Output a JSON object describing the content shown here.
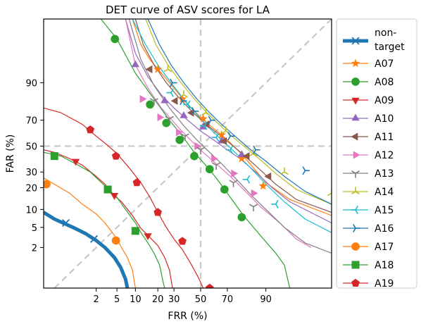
{
  "chart_data": {
    "type": "line",
    "title": "DET curve of ASV scores for LA",
    "xlabel": "FRR (%)",
    "ylabel": "FAR (%)",
    "xscale": "probit",
    "yscale": "probit",
    "xlim": [
      0.1,
      99.5
    ],
    "ylim": [
      0.2,
      99.5
    ],
    "x_ticks": [
      2,
      5,
      10,
      20,
      30,
      50,
      70,
      90
    ],
    "x_tick_labels": [
      "2",
      "5",
      "10",
      "20",
      "30",
      "50",
      "70",
      "90"
    ],
    "y_ticks": [
      2,
      5,
      10,
      20,
      30,
      50,
      70,
      90
    ],
    "y_tick_labels": [
      "2",
      "5",
      "10",
      "20",
      "30",
      "50",
      "70",
      "90"
    ],
    "grid": "dashed lines at 50% and the diagonal FAR = FRR",
    "legend_position": "outside right",
    "series": [
      {
        "name": "non-\ntarget",
        "color": "#1f77b4",
        "marker": "x",
        "thick": true,
        "points": [
          [
            0.1,
            9
          ],
          [
            0.2,
            7
          ],
          [
            0.6,
            5
          ],
          [
            1.2,
            3.8
          ],
          [
            2,
            2.8
          ],
          [
            3,
            2
          ],
          [
            4.5,
            1.2
          ],
          [
            5.8,
            0.7
          ],
          [
            7,
            0.35
          ],
          [
            7.5,
            0.2
          ]
        ],
        "marker_points": [
          [
            0.4,
            6
          ],
          [
            1.8,
            3
          ]
        ]
      },
      {
        "name": "A07",
        "color": "#ff7f0e",
        "marker": "star",
        "points": [
          [
            9,
            99.5
          ],
          [
            12,
            98
          ],
          [
            16,
            96
          ],
          [
            22,
            93
          ],
          [
            30,
            88
          ],
          [
            40,
            80
          ],
          [
            50,
            72
          ],
          [
            60,
            64
          ],
          [
            70,
            55
          ],
          [
            78,
            45
          ],
          [
            85,
            33
          ],
          [
            90,
            23
          ],
          [
            96,
            14
          ],
          [
            99.5,
            8
          ]
        ],
        "marker_points": [
          [
            20,
            94
          ],
          [
            36,
            83
          ],
          [
            52,
            71
          ],
          [
            66,
            59
          ],
          [
            79,
            40
          ],
          [
            89,
            21
          ]
        ]
      },
      {
        "name": "A08",
        "color": "#2ca02c",
        "marker": "circle",
        "points": [
          [
            2.5,
            99.5
          ],
          [
            5,
            98.5
          ],
          [
            10,
            93
          ],
          [
            18,
            83
          ],
          [
            27,
            70
          ],
          [
            36,
            58
          ],
          [
            45,
            45
          ],
          [
            53,
            36
          ],
          [
            62,
            26
          ],
          [
            71,
            16
          ],
          [
            80,
            8
          ],
          [
            88,
            3.5
          ],
          [
            93,
            1.5
          ],
          [
            95,
            0.8
          ],
          [
            96,
            0.2
          ]
        ],
        "marker_points": [
          [
            4.6,
            98.5
          ],
          [
            16,
            80
          ],
          [
            25,
            68
          ],
          [
            34,
            55
          ],
          [
            45,
            42
          ],
          [
            57,
            32
          ],
          [
            68,
            19
          ],
          [
            79,
            7.5
          ]
        ]
      },
      {
        "name": "A09",
        "color": "#d62728",
        "marker": "triangle_down",
        "points": [
          [
            0.1,
            47
          ],
          [
            0.2,
            45
          ],
          [
            0.5,
            40
          ],
          [
            1,
            35
          ],
          [
            2,
            27
          ],
          [
            3,
            22
          ],
          [
            4,
            17
          ],
          [
            6,
            13
          ],
          [
            9,
            8
          ],
          [
            12,
            4.8
          ],
          [
            16,
            3.2
          ],
          [
            20,
            2.2
          ],
          [
            24,
            1.2
          ],
          [
            27,
            0.6
          ],
          [
            29,
            0.2
          ]
        ],
        "marker_points": [
          [
            0.7,
            38
          ],
          [
            4.5,
            16
          ],
          [
            15,
            3.5
          ]
        ]
      },
      {
        "name": "A10",
        "color": "#9467bd",
        "marker": "triangle_up",
        "points": [
          [
            7,
            99.5
          ],
          [
            10,
            97
          ],
          [
            15,
            92
          ],
          [
            22,
            85
          ],
          [
            30,
            78
          ],
          [
            40,
            70
          ],
          [
            50,
            62
          ],
          [
            60,
            55
          ],
          [
            70,
            47
          ],
          [
            78,
            40
          ],
          [
            86,
            30
          ],
          [
            92,
            20
          ],
          [
            96,
            13
          ],
          [
            99.5,
            6
          ]
        ],
        "marker_points": [
          [
            10,
            95
          ],
          [
            24,
            82
          ],
          [
            37,
            73
          ],
          [
            52,
            65
          ],
          [
            66,
            54
          ],
          [
            79,
            43
          ]
        ]
      },
      {
        "name": "A11",
        "color": "#8c564b",
        "marker": "triangle_left",
        "points": [
          [
            10,
            99.5
          ],
          [
            13,
            98
          ],
          [
            18,
            95
          ],
          [
            25,
            90
          ],
          [
            33,
            84
          ],
          [
            43,
            76
          ],
          [
            53,
            68
          ],
          [
            62,
            61
          ],
          [
            71,
            53
          ],
          [
            80,
            43
          ],
          [
            87,
            33
          ],
          [
            93,
            22
          ],
          [
            97,
            14
          ],
          [
            99.5,
            9
          ]
        ],
        "marker_points": [
          [
            16,
            94
          ],
          [
            31,
            82
          ],
          [
            43,
            75
          ],
          [
            55,
            67
          ],
          [
            68,
            54
          ],
          [
            82,
            42
          ],
          [
            91,
            27
          ]
        ]
      },
      {
        "name": "A12",
        "color": "#e377c2",
        "marker": "triangle_right",
        "points": [
          [
            7,
            99.5
          ],
          [
            10,
            95
          ],
          [
            15,
            88
          ],
          [
            22,
            78
          ],
          [
            32,
            66
          ],
          [
            42,
            55
          ],
          [
            52,
            45
          ],
          [
            62,
            36
          ],
          [
            72,
            27
          ],
          [
            81,
            18
          ],
          [
            88,
            11
          ],
          [
            94,
            6
          ],
          [
            97,
            3
          ],
          [
            98.5,
            2
          ]
        ],
        "marker_points": [
          [
            12.5,
            83
          ],
          [
            21,
            72
          ],
          [
            33,
            61
          ],
          [
            47,
            50
          ],
          [
            60,
            40
          ],
          [
            74,
            29
          ],
          [
            85,
            17
          ]
        ]
      },
      {
        "name": "A13",
        "color": "#7f7f7f",
        "marker": "tri_down",
        "points": [
          [
            8,
            99.5
          ],
          [
            12,
            96
          ],
          [
            18,
            89
          ],
          [
            27,
            78
          ],
          [
            37,
            66
          ],
          [
            47,
            55
          ],
          [
            57,
            45
          ],
          [
            67,
            35
          ],
          [
            76,
            25
          ],
          [
            84,
            16
          ],
          [
            90,
            10
          ],
          [
            95,
            5
          ],
          [
            98,
            2.5
          ],
          [
            99.5,
            1.5
          ]
        ],
        "marker_points": [
          [
            18,
            82
          ],
          [
            27,
            71
          ],
          [
            38,
            58
          ],
          [
            50,
            47
          ],
          [
            62,
            35
          ],
          [
            74,
            23
          ],
          [
            85,
            11
          ]
        ]
      },
      {
        "name": "A14",
        "color": "#bcbd22",
        "marker": "tri_up",
        "points": [
          [
            14,
            99.5
          ],
          [
            19,
            98
          ],
          [
            26,
            95
          ],
          [
            35,
            90
          ],
          [
            45,
            83
          ],
          [
            55,
            75
          ],
          [
            64,
            67
          ],
          [
            73,
            58
          ],
          [
            81,
            49
          ],
          [
            88,
            39
          ],
          [
            93,
            29
          ],
          [
            97,
            19
          ],
          [
            99.5,
            12
          ]
        ],
        "marker_points": [
          [
            26,
            94
          ],
          [
            37,
            85
          ],
          [
            54,
            75
          ],
          [
            69,
            62
          ],
          [
            85,
            44
          ],
          [
            95,
            30
          ],
          [
            99.5,
            17
          ]
        ]
      },
      {
        "name": "A15",
        "color": "#17becf",
        "marker": "tri_left",
        "points": [
          [
            9,
            99.5
          ],
          [
            14,
            98
          ],
          [
            20,
            95
          ],
          [
            28,
            90
          ],
          [
            38,
            82
          ],
          [
            48,
            73
          ],
          [
            57,
            64
          ],
          [
            66,
            55
          ],
          [
            75,
            45
          ],
          [
            83,
            34
          ],
          [
            90,
            22
          ],
          [
            95,
            13
          ],
          [
            98,
            7
          ],
          [
            99.5,
            4
          ]
        ],
        "marker_points": [
          [
            28,
            86
          ],
          [
            40,
            80
          ],
          [
            53,
            66
          ],
          [
            62,
            57
          ],
          [
            72,
            47
          ],
          [
            82,
            25
          ],
          [
            93,
            12
          ]
        ]
      },
      {
        "name": "A16",
        "color": "#1f77b4",
        "marker": "tri_right",
        "points": [
          [
            15,
            99.5
          ],
          [
            21,
            98
          ],
          [
            28,
            95
          ],
          [
            37,
            90
          ],
          [
            47,
            83
          ],
          [
            57,
            75
          ],
          [
            66,
            67
          ],
          [
            75,
            58
          ],
          [
            83,
            48
          ],
          [
            90,
            38
          ],
          [
            95,
            27
          ],
          [
            98,
            18
          ],
          [
            99.5,
            12
          ]
        ],
        "marker_points": [
          [
            22,
            100
          ],
          [
            29,
            90
          ],
          [
            36,
            82
          ],
          [
            45,
            76
          ],
          [
            58,
            70
          ],
          [
            72,
            58
          ],
          [
            86,
            47
          ],
          [
            98,
            31
          ]
        ]
      },
      {
        "name": "A17",
        "color": "#ff7f0e",
        "marker": "circle",
        "points": [
          [
            0.1,
            26
          ],
          [
            0.2,
            22
          ],
          [
            0.5,
            17
          ],
          [
            1,
            12
          ],
          [
            2,
            8.5
          ],
          [
            3,
            6
          ],
          [
            4,
            4.2
          ],
          [
            5,
            3
          ],
          [
            6,
            2
          ],
          [
            7.5,
            1.2
          ],
          [
            9,
            0.6
          ],
          [
            10,
            0.2
          ]
        ],
        "marker_points": [
          [
            0.12,
            22
          ],
          [
            4.8,
            2.8
          ]
        ]
      },
      {
        "name": "A18",
        "color": "#2ca02c",
        "marker": "square",
        "points": [
          [
            0.1,
            45
          ],
          [
            0.3,
            42
          ],
          [
            0.7,
            36
          ],
          [
            1.5,
            30
          ],
          [
            3,
            21
          ],
          [
            5,
            15
          ],
          [
            7,
            10
          ],
          [
            10,
            6
          ],
          [
            12,
            4
          ],
          [
            15,
            2.5
          ],
          [
            18,
            1.5
          ],
          [
            21,
            0.8
          ],
          [
            23,
            0.3
          ],
          [
            24,
            0.2
          ]
        ],
        "marker_points": [
          [
            0.2,
            42
          ],
          [
            3.4,
            19
          ],
          [
            10,
            4.3
          ]
        ]
      },
      {
        "name": "A19",
        "color": "#d62728",
        "marker": "pentagon",
        "points": [
          [
            0.1,
            78
          ],
          [
            0.3,
            75
          ],
          [
            1,
            67
          ],
          [
            2,
            58
          ],
          [
            3.5,
            50
          ],
          [
            5,
            44
          ],
          [
            8,
            33
          ],
          [
            12,
            23
          ],
          [
            16,
            15
          ],
          [
            20,
            9
          ],
          [
            25,
            5
          ],
          [
            30,
            3
          ],
          [
            36,
            1.8
          ],
          [
            42,
            0.9
          ],
          [
            48,
            0.4
          ],
          [
            52,
            0.2
          ]
        ],
        "marker_points": [
          [
            1.5,
            63
          ],
          [
            4.8,
            42
          ],
          [
            10.5,
            23
          ],
          [
            20,
            9
          ],
          [
            36,
            2.7
          ],
          [
            57,
            0.2
          ]
        ]
      }
    ]
  }
}
